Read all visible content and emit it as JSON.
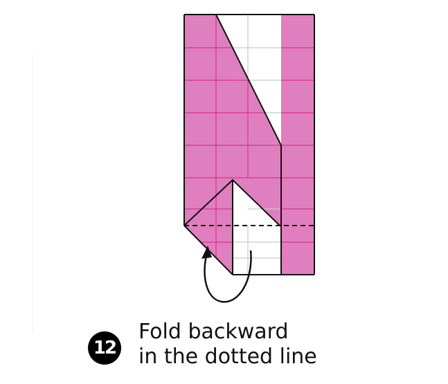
{
  "step": {
    "number": "12",
    "instruction_line1": "Fold backward",
    "instruction_line2": "in the dotted line"
  },
  "colors": {
    "paper_colored": "#e07fbf",
    "paper_white": "#ffffff",
    "grid_on_colored": "#d9308a",
    "grid_on_white": "#b8d0b8",
    "outline": "#111111"
  }
}
